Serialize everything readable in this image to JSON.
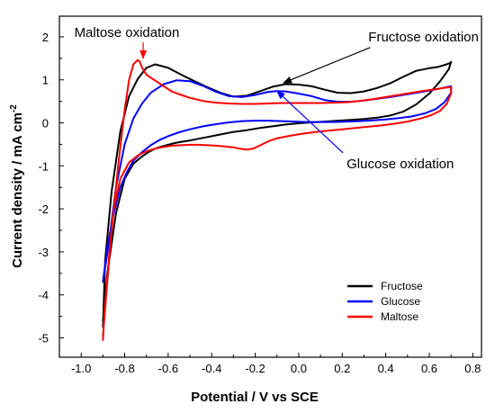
{
  "chart_data": {
    "type": "line",
    "xlabel": "Potential / V vs SCE",
    "ylabel": "Current density / mA cm",
    "ylabel_sup": "-2",
    "xlim": [
      -1.1,
      0.84
    ],
    "ylim": [
      -5.45,
      2.48
    ],
    "xticks": [
      -1.0,
      -0.8,
      -0.6,
      -0.4,
      -0.2,
      0.0,
      0.2,
      0.4,
      0.6,
      0.8
    ],
    "xtick_labels": [
      "-1.0",
      "-0.8",
      "-0.6",
      "-0.4",
      "-0.2",
      "0.0",
      "0.2",
      "0.4",
      "0.6",
      "0.8"
    ],
    "yticks": [
      2,
      1,
      0,
      -1,
      -2,
      -3,
      -4,
      -5
    ],
    "ytick_labels": [
      "2",
      "1",
      "0",
      "-1",
      "-2",
      "-3",
      "-4",
      "-5"
    ],
    "grid": false,
    "legend_position": "bottom-right",
    "series": [
      {
        "name": "Fructose",
        "color": "#000000",
        "x": [
          -0.9,
          -0.88,
          -0.84,
          -0.8,
          -0.76,
          -0.72,
          -0.69,
          -0.66,
          -0.63,
          -0.6,
          -0.57,
          -0.54,
          -0.5,
          -0.46,
          -0.42,
          -0.38,
          -0.34,
          -0.3,
          -0.24,
          -0.18,
          -0.12,
          -0.06,
          0.0,
          0.06,
          0.12,
          0.18,
          0.24,
          0.3,
          0.36,
          0.42,
          0.48,
          0.54,
          0.6,
          0.65,
          0.69,
          0.7,
          0.7,
          0.68,
          0.64,
          0.6,
          0.54,
          0.48,
          0.42,
          0.36,
          0.3,
          0.24,
          0.18,
          0.12,
          0.06,
          0.0,
          -0.06,
          -0.12,
          -0.18,
          -0.24,
          -0.3,
          -0.36,
          -0.42,
          -0.48,
          -0.54,
          -0.6,
          -0.66,
          -0.7,
          -0.74,
          -0.78,
          -0.82,
          -0.86,
          -0.89,
          -0.9
        ],
        "y": [
          -4.6,
          -3.5,
          -2.1,
          -1.3,
          -0.95,
          -0.78,
          -0.68,
          -0.6,
          -0.55,
          -0.51,
          -0.47,
          -0.44,
          -0.41,
          -0.37,
          -0.33,
          -0.29,
          -0.25,
          -0.21,
          -0.17,
          -0.12,
          -0.08,
          -0.04,
          -0.01,
          0.01,
          0.03,
          0.05,
          0.07,
          0.09,
          0.12,
          0.17,
          0.26,
          0.43,
          0.68,
          0.97,
          1.25,
          1.42,
          1.4,
          1.36,
          1.3,
          1.27,
          1.21,
          1.07,
          0.92,
          0.81,
          0.73,
          0.69,
          0.7,
          0.77,
          0.85,
          0.89,
          0.9,
          0.84,
          0.73,
          0.63,
          0.61,
          0.7,
          0.83,
          0.97,
          1.12,
          1.28,
          1.36,
          1.28,
          1.02,
          0.62,
          -0.2,
          -1.6,
          -3.2,
          -4.75
        ]
      },
      {
        "name": "Glucose",
        "color": "#0000ff",
        "x": [
          -0.9,
          -0.88,
          -0.85,
          -0.82,
          -0.79,
          -0.76,
          -0.72,
          -0.68,
          -0.64,
          -0.6,
          -0.55,
          -0.5,
          -0.44,
          -0.38,
          -0.32,
          -0.26,
          -0.2,
          -0.14,
          -0.08,
          -0.02,
          0.04,
          0.1,
          0.16,
          0.22,
          0.28,
          0.34,
          0.4,
          0.46,
          0.52,
          0.58,
          0.63,
          0.67,
          0.7,
          0.7,
          0.68,
          0.64,
          0.6,
          0.54,
          0.48,
          0.42,
          0.36,
          0.3,
          0.24,
          0.18,
          0.12,
          0.06,
          0.0,
          -0.06,
          -0.1,
          -0.14,
          -0.2,
          -0.26,
          -0.32,
          -0.38,
          -0.44,
          -0.5,
          -0.56,
          -0.62,
          -0.68,
          -0.72,
          -0.76,
          -0.8,
          -0.84,
          -0.87,
          -0.9
        ],
        "y": [
          -3.7,
          -2.9,
          -2.1,
          -1.5,
          -1.15,
          -0.88,
          -0.68,
          -0.52,
          -0.4,
          -0.31,
          -0.22,
          -0.15,
          -0.08,
          -0.03,
          0.01,
          0.04,
          0.05,
          0.05,
          0.04,
          0.03,
          0.02,
          0.02,
          0.02,
          0.03,
          0.04,
          0.06,
          0.08,
          0.11,
          0.15,
          0.22,
          0.32,
          0.48,
          0.7,
          0.85,
          0.83,
          0.79,
          0.75,
          0.7,
          0.65,
          0.6,
          0.56,
          0.52,
          0.49,
          0.49,
          0.53,
          0.62,
          0.68,
          0.73,
          0.74,
          0.72,
          0.65,
          0.6,
          0.62,
          0.72,
          0.86,
          0.97,
          0.99,
          0.9,
          0.7,
          0.45,
          0.1,
          -0.5,
          -1.5,
          -2.7,
          -3.7
        ]
      },
      {
        "name": "Maltose",
        "color": "#ff0000",
        "x": [
          -0.9,
          -0.89,
          -0.87,
          -0.85,
          -0.82,
          -0.78,
          -0.74,
          -0.7,
          -0.66,
          -0.62,
          -0.58,
          -0.54,
          -0.5,
          -0.46,
          -0.42,
          -0.38,
          -0.34,
          -0.3,
          -0.27,
          -0.24,
          -0.21,
          -0.18,
          -0.14,
          -0.1,
          -0.04,
          0.02,
          0.08,
          0.14,
          0.2,
          0.26,
          0.32,
          0.38,
          0.44,
          0.5,
          0.56,
          0.61,
          0.65,
          0.68,
          0.7,
          0.7,
          0.68,
          0.64,
          0.58,
          0.52,
          0.46,
          0.4,
          0.34,
          0.28,
          0.22,
          0.16,
          0.1,
          0.04,
          -0.02,
          -0.08,
          -0.14,
          -0.2,
          -0.26,
          -0.32,
          -0.38,
          -0.44,
          -0.5,
          -0.54,
          -0.58,
          -0.62,
          -0.65,
          -0.68,
          -0.7,
          -0.72,
          -0.73,
          -0.74,
          -0.76,
          -0.78,
          -0.8,
          -0.83,
          -0.86,
          -0.88,
          -0.9
        ],
        "y": [
          -5.05,
          -4.2,
          -3.0,
          -2.0,
          -1.3,
          -0.92,
          -0.76,
          -0.66,
          -0.6,
          -0.56,
          -0.53,
          -0.52,
          -0.51,
          -0.51,
          -0.52,
          -0.53,
          -0.55,
          -0.57,
          -0.6,
          -0.62,
          -0.6,
          -0.53,
          -0.43,
          -0.36,
          -0.3,
          -0.25,
          -0.21,
          -0.18,
          -0.15,
          -0.12,
          -0.09,
          -0.06,
          -0.02,
          0.03,
          0.1,
          0.18,
          0.28,
          0.44,
          0.68,
          0.83,
          0.82,
          0.79,
          0.75,
          0.7,
          0.65,
          0.6,
          0.55,
          0.51,
          0.48,
          0.47,
          0.46,
          0.46,
          0.46,
          0.46,
          0.45,
          0.44,
          0.44,
          0.45,
          0.47,
          0.51,
          0.58,
          0.65,
          0.72,
          0.85,
          0.95,
          1.05,
          1.12,
          1.28,
          1.42,
          1.46,
          1.36,
          1.0,
          0.3,
          -1.0,
          -2.5,
          -3.7,
          -4.95
        ]
      }
    ],
    "annotations": [
      {
        "text": "Maltose oxidation",
        "color": "#ff0000",
        "label_at": [
          -0.715,
          2.0
        ],
        "arrow_to": [
          -0.715,
          1.5
        ]
      },
      {
        "text": "Fructose oxidation",
        "color": "#000000",
        "label_at": [
          0.32,
          1.92
        ],
        "arrow_to": [
          -0.07,
          0.93
        ]
      },
      {
        "text": "Glucose oxidation",
        "color": "#0000ff",
        "label_at": [
          0.22,
          -0.95
        ],
        "arrow_to": [
          -0.1,
          0.74
        ]
      }
    ]
  }
}
